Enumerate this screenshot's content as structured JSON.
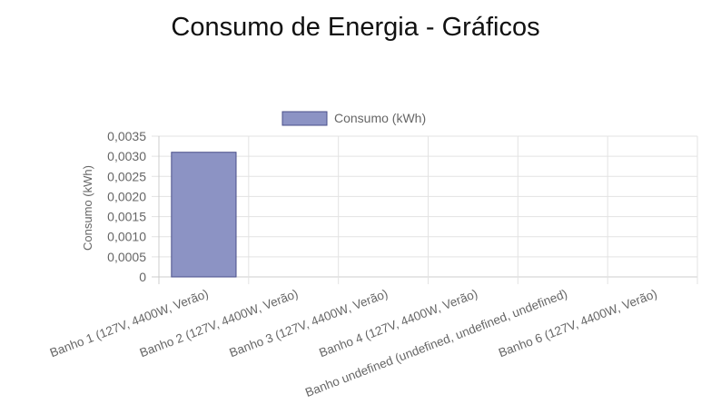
{
  "page": {
    "title": "Consumo de Energia - Gráficos"
  },
  "colors": {
    "bar_fill": "#8c93c4",
    "bar_border": "#4a4f8a",
    "grid": "#e3e3e3",
    "axis_text": "#666666"
  },
  "chart_data": {
    "type": "bar",
    "title": "",
    "xlabel": "",
    "ylabel": "Consumo (kWh)",
    "ylim": [
      0,
      0.0035
    ],
    "yticks": [
      "0",
      "0,0005",
      "0,0010",
      "0,0015",
      "0,0020",
      "0,0025",
      "0,0030",
      "0,0035"
    ],
    "grid": true,
    "legend_position": "top-center",
    "categories": [
      "Banho 1 (127V, 4400W, Verão)",
      "Banho 2 (127V, 4400W, Verão)",
      "Banho 3 (127V, 4400W, Verão)",
      "Banho 4 (127V, 4400W, Verão)",
      "Banho undefined (undefined, undefined, undefined)",
      "Banho 6 (127V, 4400W, Verão)"
    ],
    "series": [
      {
        "name": "Consumo (kWh)",
        "values": [
          0.0031,
          0,
          0,
          0,
          0,
          0
        ]
      }
    ]
  }
}
